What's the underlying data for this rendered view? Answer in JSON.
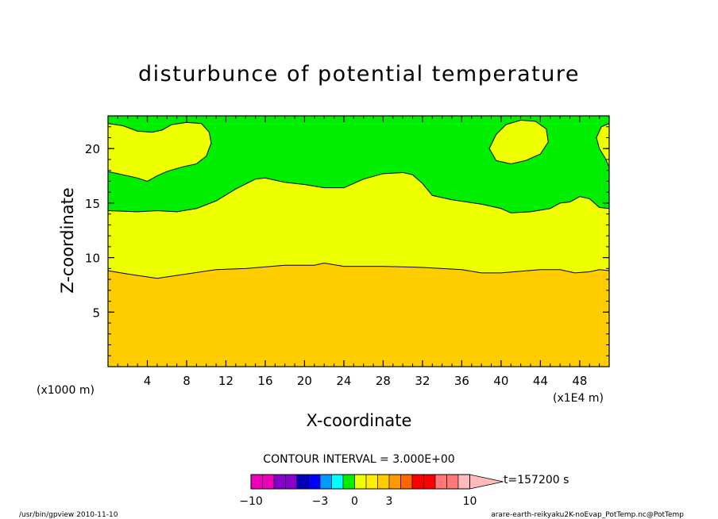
{
  "chart_data": {
    "type": "contour",
    "title": "disturbunce of potential temperature",
    "xlabel": "X-coordinate",
    "ylabel": "Z-coordinate",
    "x_unit_note": "(x1E4 m)",
    "y_unit_note": "(x1000 m)",
    "xlim": [
      0,
      51
    ],
    "ylim": [
      0,
      23
    ],
    "xticks": [
      4,
      8,
      12,
      16,
      20,
      24,
      28,
      32,
      36,
      40,
      44,
      48
    ],
    "yticks": [
      5,
      10,
      15,
      20
    ],
    "contour_interval_text": "CONTOUR INTERVAL = 3.000E+00",
    "time_label": "t=157200 s",
    "levels": [
      -10,
      -3,
      0,
      3,
      10
    ],
    "fill_colors": {
      "orange": "#ffcc00",
      "yellow": "#eeff00",
      "green": "#00ee00"
    },
    "regions": [
      {
        "name": "band 0-3 (lower)",
        "color": "orange",
        "boundary_top": [
          [
            0,
            8.8
          ],
          [
            2,
            8.5
          ],
          [
            5,
            8.1
          ],
          [
            8,
            8.5
          ],
          [
            11,
            8.9
          ],
          [
            14,
            9.0
          ],
          [
            18,
            9.3
          ],
          [
            21,
            9.3
          ],
          [
            22,
            9.5
          ],
          [
            24,
            9.2
          ],
          [
            28,
            9.2
          ],
          [
            32,
            9.1
          ],
          [
            36,
            8.9
          ],
          [
            38,
            8.6
          ],
          [
            40,
            8.6
          ],
          [
            44,
            8.9
          ],
          [
            46,
            8.9
          ],
          [
            47.5,
            8.6
          ],
          [
            49,
            8.7
          ],
          [
            50,
            8.9
          ],
          [
            51,
            8.8
          ]
        ]
      },
      {
        "name": "band 3-6 (middle)",
        "color": "yellow",
        "boundary_top": [
          [
            0,
            14.3
          ],
          [
            3,
            14.2
          ],
          [
            5,
            14.3
          ],
          [
            7,
            14.2
          ],
          [
            9,
            14.5
          ],
          [
            11,
            15.2
          ],
          [
            13,
            16.3
          ],
          [
            15,
            17.2
          ],
          [
            16,
            17.3
          ],
          [
            18,
            16.9
          ],
          [
            20,
            16.7
          ],
          [
            22,
            16.4
          ],
          [
            24,
            16.4
          ],
          [
            26,
            17.2
          ],
          [
            28,
            17.7
          ],
          [
            30,
            17.8
          ],
          [
            31,
            17.6
          ],
          [
            32,
            16.8
          ],
          [
            33,
            15.7
          ],
          [
            35,
            15.3
          ],
          [
            38,
            14.9
          ],
          [
            40,
            14.5
          ],
          [
            41,
            14.1
          ],
          [
            43,
            14.2
          ],
          [
            45,
            14.5
          ],
          [
            46,
            15.0
          ],
          [
            47,
            15.1
          ],
          [
            48,
            15.6
          ],
          [
            49,
            15.4
          ],
          [
            50,
            14.6
          ],
          [
            51,
            14.5
          ]
        ]
      },
      {
        "name": "band 6+ (upper)",
        "color": "green"
      }
    ],
    "upper_patches": [
      {
        "color": "yellow",
        "note": "upper-left yellow region"
      },
      {
        "color": "yellow",
        "note": "upper-right yellow blob"
      },
      {
        "color": "yellow",
        "note": "right-edge yellow sliver"
      }
    ],
    "colorbar": {
      "colors": [
        "#ee00bb",
        "#ee00bb",
        "#8800cc",
        "#8800cc",
        "#0000bb",
        "#0000ff",
        "#0099ff",
        "#00ffff",
        "#00ee00",
        "#eeff00",
        "#ffee00",
        "#ffcc00",
        "#ff9900",
        "#ff6600",
        "#ff0000",
        "#ff0000",
        "#ff7777",
        "#ff7777",
        "#ffbbbb"
      ],
      "tick_labels": [
        "−10",
        "−3",
        "0",
        "3",
        "10"
      ],
      "tick_values": [
        -10,
        -3,
        0,
        3,
        10
      ]
    }
  },
  "footer": {
    "left": "/usr/bin/gpview  2010-11-10",
    "right": "arare-earth-reikyaku2K-noEvap_PotTemp.nc@PotTemp"
  }
}
